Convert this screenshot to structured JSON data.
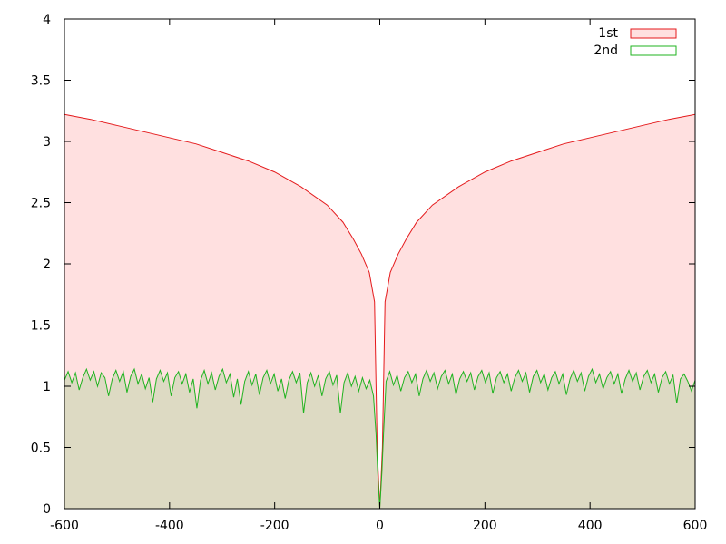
{
  "chart_data": {
    "type": "area",
    "x_range": [
      -600,
      600
    ],
    "y_range": [
      0,
      4
    ],
    "x_ticks": [
      -600,
      -400,
      -200,
      0,
      200,
      400,
      600
    ],
    "y_ticks": [
      0,
      0.5,
      1,
      1.5,
      2,
      2.5,
      3,
      3.5,
      4
    ],
    "x_tick_labels": [
      "-600",
      "-400",
      "-200",
      "0",
      "200",
      "400",
      "600"
    ],
    "y_tick_labels": [
      "0",
      "0.5",
      "1",
      "1.5",
      "2",
      "2.5",
      "3",
      "3.5",
      "4"
    ],
    "legend_position": "top-right",
    "grid": false,
    "series": [
      {
        "name": "1st",
        "color": "#e41a1c",
        "fill": "#ffe0e0",
        "points": [
          [
            -600,
            3.22
          ],
          [
            -550,
            3.18
          ],
          [
            -500,
            3.13
          ],
          [
            -450,
            3.08
          ],
          [
            -400,
            3.03
          ],
          [
            -350,
            2.98
          ],
          [
            -300,
            2.91
          ],
          [
            -250,
            2.84
          ],
          [
            -200,
            2.75
          ],
          [
            -150,
            2.63
          ],
          [
            -100,
            2.48
          ],
          [
            -70,
            2.34
          ],
          [
            -50,
            2.2
          ],
          [
            -35,
            2.08
          ],
          [
            -20,
            1.93
          ],
          [
            -10,
            1.69
          ],
          [
            -5,
            0.5
          ],
          [
            0,
            0
          ],
          [
            5,
            0.5
          ],
          [
            10,
            1.69
          ],
          [
            20,
            1.93
          ],
          [
            35,
            2.08
          ],
          [
            50,
            2.2
          ],
          [
            70,
            2.34
          ],
          [
            100,
            2.48
          ],
          [
            150,
            2.63
          ],
          [
            200,
            2.75
          ],
          [
            250,
            2.84
          ],
          [
            300,
            2.91
          ],
          [
            350,
            2.98
          ],
          [
            400,
            3.03
          ],
          [
            450,
            3.08
          ],
          [
            500,
            3.13
          ],
          [
            550,
            3.18
          ],
          [
            600,
            3.22
          ]
        ]
      },
      {
        "name": "2nd",
        "color": "#1fb31f",
        "fill": "rgba(180,210,160,0.45)",
        "points": [
          [
            -600,
            1.05
          ],
          [
            -593,
            1.12
          ],
          [
            -586,
            1.03
          ],
          [
            -579,
            1.11
          ],
          [
            -572,
            0.97
          ],
          [
            -565,
            1.07
          ],
          [
            -558,
            1.14
          ],
          [
            -551,
            1.05
          ],
          [
            -544,
            1.12
          ],
          [
            -537,
            1.0
          ],
          [
            -530,
            1.11
          ],
          [
            -523,
            1.07
          ],
          [
            -516,
            0.92
          ],
          [
            -509,
            1.06
          ],
          [
            -502,
            1.13
          ],
          [
            -495,
            1.04
          ],
          [
            -488,
            1.12
          ],
          [
            -481,
            0.95
          ],
          [
            -474,
            1.08
          ],
          [
            -467,
            1.14
          ],
          [
            -460,
            1.02
          ],
          [
            -453,
            1.1
          ],
          [
            -446,
            0.98
          ],
          [
            -439,
            1.07
          ],
          [
            -432,
            0.87
          ],
          [
            -425,
            1.06
          ],
          [
            -418,
            1.13
          ],
          [
            -411,
            1.04
          ],
          [
            -404,
            1.11
          ],
          [
            -397,
            0.92
          ],
          [
            -390,
            1.07
          ],
          [
            -383,
            1.12
          ],
          [
            -376,
            1.02
          ],
          [
            -369,
            1.1
          ],
          [
            -362,
            0.95
          ],
          [
            -355,
            1.06
          ],
          [
            -348,
            0.82
          ],
          [
            -341,
            1.05
          ],
          [
            -334,
            1.13
          ],
          [
            -327,
            1.02
          ],
          [
            -320,
            1.11
          ],
          [
            -313,
            0.97
          ],
          [
            -306,
            1.08
          ],
          [
            -299,
            1.14
          ],
          [
            -292,
            1.03
          ],
          [
            -285,
            1.1
          ],
          [
            -278,
            0.91
          ],
          [
            -271,
            1.06
          ],
          [
            -264,
            0.85
          ],
          [
            -257,
            1.04
          ],
          [
            -250,
            1.12
          ],
          [
            -243,
            1.01
          ],
          [
            -236,
            1.1
          ],
          [
            -229,
            0.93
          ],
          [
            -222,
            1.07
          ],
          [
            -215,
            1.13
          ],
          [
            -208,
            1.02
          ],
          [
            -201,
            1.1
          ],
          [
            -194,
            0.96
          ],
          [
            -187,
            1.06
          ],
          [
            -180,
            0.9
          ],
          [
            -173,
            1.05
          ],
          [
            -166,
            1.12
          ],
          [
            -159,
            1.03
          ],
          [
            -152,
            1.11
          ],
          [
            -145,
            0.78
          ],
          [
            -138,
            1.03
          ],
          [
            -131,
            1.11
          ],
          [
            -124,
            1.0
          ],
          [
            -117,
            1.09
          ],
          [
            -110,
            0.92
          ],
          [
            -103,
            1.06
          ],
          [
            -96,
            1.12
          ],
          [
            -89,
            1.01
          ],
          [
            -82,
            1.09
          ],
          [
            -75,
            0.78
          ],
          [
            -68,
            1.03
          ],
          [
            -61,
            1.11
          ],
          [
            -54,
            1.0
          ],
          [
            -47,
            1.08
          ],
          [
            -40,
            0.96
          ],
          [
            -33,
            1.07
          ],
          [
            -26,
            0.98
          ],
          [
            -19,
            1.05
          ],
          [
            -12,
            0.92
          ],
          [
            -7,
            0.6
          ],
          [
            -4,
            0.3
          ],
          [
            0,
            0
          ],
          [
            4,
            0.3
          ],
          [
            7,
            0.6
          ],
          [
            12,
            1.04
          ],
          [
            19,
            1.12
          ],
          [
            26,
            1.01
          ],
          [
            33,
            1.09
          ],
          [
            40,
            0.96
          ],
          [
            47,
            1.07
          ],
          [
            54,
            1.12
          ],
          [
            61,
            1.03
          ],
          [
            68,
            1.1
          ],
          [
            75,
            0.92
          ],
          [
            82,
            1.06
          ],
          [
            89,
            1.13
          ],
          [
            96,
            1.04
          ],
          [
            103,
            1.11
          ],
          [
            110,
            0.98
          ],
          [
            117,
            1.08
          ],
          [
            124,
            1.13
          ],
          [
            131,
            1.02
          ],
          [
            138,
            1.1
          ],
          [
            145,
            0.93
          ],
          [
            152,
            1.06
          ],
          [
            159,
            1.12
          ],
          [
            166,
            1.04
          ],
          [
            173,
            1.11
          ],
          [
            180,
            0.97
          ],
          [
            187,
            1.08
          ],
          [
            194,
            1.13
          ],
          [
            201,
            1.03
          ],
          [
            208,
            1.11
          ],
          [
            215,
            0.94
          ],
          [
            222,
            1.07
          ],
          [
            229,
            1.12
          ],
          [
            236,
            1.03
          ],
          [
            243,
            1.1
          ],
          [
            250,
            0.96
          ],
          [
            257,
            1.07
          ],
          [
            264,
            1.13
          ],
          [
            271,
            1.04
          ],
          [
            278,
            1.11
          ],
          [
            285,
            0.95
          ],
          [
            292,
            1.08
          ],
          [
            299,
            1.13
          ],
          [
            306,
            1.03
          ],
          [
            313,
            1.1
          ],
          [
            320,
            0.97
          ],
          [
            327,
            1.07
          ],
          [
            334,
            1.12
          ],
          [
            341,
            1.02
          ],
          [
            348,
            1.1
          ],
          [
            355,
            0.93
          ],
          [
            362,
            1.06
          ],
          [
            369,
            1.13
          ],
          [
            376,
            1.04
          ],
          [
            383,
            1.11
          ],
          [
            390,
            0.96
          ],
          [
            397,
            1.08
          ],
          [
            404,
            1.14
          ],
          [
            411,
            1.03
          ],
          [
            418,
            1.1
          ],
          [
            425,
            0.98
          ],
          [
            432,
            1.07
          ],
          [
            439,
            1.12
          ],
          [
            446,
            1.02
          ],
          [
            453,
            1.1
          ],
          [
            460,
            0.94
          ],
          [
            467,
            1.06
          ],
          [
            474,
            1.13
          ],
          [
            481,
            1.04
          ],
          [
            488,
            1.11
          ],
          [
            495,
            0.97
          ],
          [
            502,
            1.08
          ],
          [
            509,
            1.13
          ],
          [
            516,
            1.03
          ],
          [
            523,
            1.1
          ],
          [
            530,
            0.95
          ],
          [
            537,
            1.07
          ],
          [
            544,
            1.12
          ],
          [
            551,
            1.02
          ],
          [
            558,
            1.09
          ],
          [
            565,
            0.86
          ],
          [
            572,
            1.06
          ],
          [
            579,
            1.1
          ],
          [
            586,
            1.04
          ],
          [
            593,
            0.96
          ],
          [
            600,
            1.05
          ]
        ]
      }
    ]
  }
}
